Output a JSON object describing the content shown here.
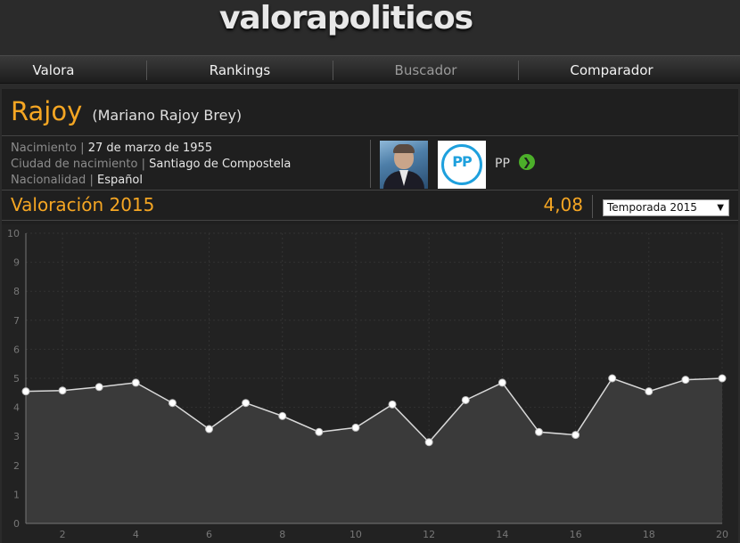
{
  "site": {
    "logo": "valorapoliticos"
  },
  "nav": {
    "items": [
      {
        "label": "Valora"
      },
      {
        "label": "Rankings"
      },
      {
        "label": "Buscador"
      },
      {
        "label": "Comparador"
      }
    ]
  },
  "profile": {
    "surname": "Rajoy",
    "fullname": "(Mariano Rajoy Brey)",
    "nacimiento_label": "Nacimiento",
    "nacimiento": "27 de marzo de 1955",
    "ciudad_label": "Ciudad de nacimiento",
    "ciudad": "Santiago de Compostela",
    "nacionalidad_label": "Nacionalidad",
    "nacionalidad": "Español",
    "separator": "|",
    "party": "PP",
    "party_logo_text": "PP"
  },
  "rating": {
    "title": "Valoración 2015",
    "score": "4,08",
    "season_selected": "Temporada 2015"
  },
  "colors": {
    "accent": "#f5a623",
    "chart_line": "#d9d9d9",
    "chart_area": "#3a3a3a",
    "party_blue": "#1ea0dd",
    "go_green": "#4caf2a"
  },
  "chart_data": {
    "type": "area",
    "x": [
      1,
      2,
      3,
      4,
      5,
      6,
      7,
      8,
      9,
      10,
      11,
      12,
      13,
      14,
      15,
      16,
      17,
      18,
      19,
      20
    ],
    "values": [
      4.55,
      4.58,
      4.7,
      4.85,
      4.15,
      3.25,
      4.15,
      3.7,
      3.15,
      3.3,
      4.1,
      2.8,
      4.25,
      4.85,
      3.15,
      3.05,
      5.0,
      4.55,
      4.95,
      5.0
    ],
    "xlim": [
      1,
      20
    ],
    "ylim": [
      0,
      10
    ],
    "x_ticks": [
      2,
      4,
      6,
      8,
      10,
      12,
      14,
      16,
      18,
      20
    ],
    "y_ticks": [
      0,
      1,
      2,
      3,
      4,
      5,
      6,
      7,
      8,
      9,
      10
    ],
    "grid": true,
    "markers": true
  }
}
